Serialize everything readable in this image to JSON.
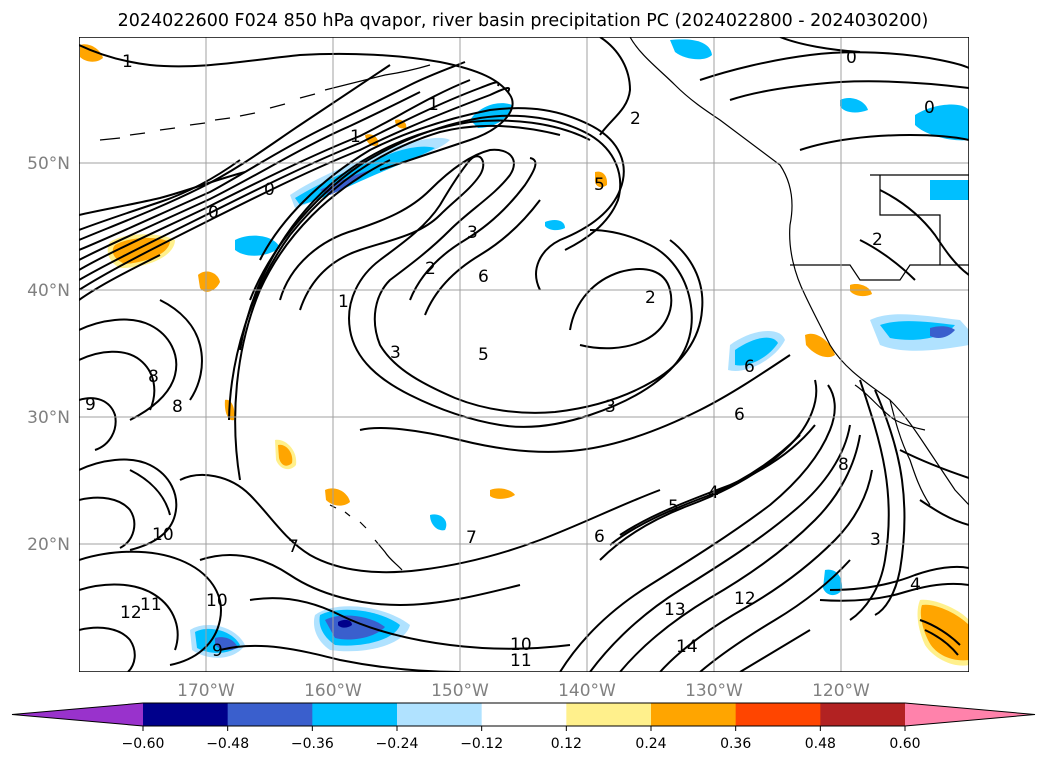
{
  "title": "2024022600 F024 850 hPa qvapor, river basin precipitation PC (2024022800 - 2024030200)",
  "axes": {
    "lat_labels": [
      "50°N",
      "40°N",
      "30°N",
      "20°N"
    ],
    "lon_labels": [
      "170°W",
      "160°W",
      "150°W",
      "140°W",
      "130°W",
      "120°W"
    ],
    "lat_range": [
      10,
      60
    ],
    "lon_range": [
      -180,
      -110
    ]
  },
  "colorbar": {
    "ticks": [
      "−0.60",
      "−0.48",
      "−0.36",
      "−0.24",
      "−0.12",
      "0.12",
      "0.24",
      "0.36",
      "0.48",
      "0.60"
    ],
    "colors": [
      "#9932cc",
      "#00008b",
      "#3a5fcd",
      "#00bfff",
      "#b0e2ff",
      "#ffffff",
      "#fff08c",
      "#ffa500",
      "#ff4500",
      "#b22222",
      "#ff82ab"
    ]
  },
  "contour_labels": [
    {
      "text": "1"
    },
    {
      "text": "1"
    },
    {
      "text": "1"
    },
    {
      "text": "1"
    },
    {
      "text": "0"
    },
    {
      "text": "0"
    },
    {
      "text": "0"
    },
    {
      "text": "0"
    },
    {
      "text": "2"
    },
    {
      "text": "2"
    },
    {
      "text": "2"
    },
    {
      "text": "2"
    },
    {
      "text": "3"
    },
    {
      "text": "3"
    },
    {
      "text": "3"
    },
    {
      "text": "3"
    },
    {
      "text": "5"
    },
    {
      "text": "5"
    },
    {
      "text": "5"
    },
    {
      "text": "6"
    },
    {
      "text": "6"
    },
    {
      "text": "6"
    },
    {
      "text": "6"
    },
    {
      "text": "7"
    },
    {
      "text": "7"
    },
    {
      "text": "8"
    },
    {
      "text": "8"
    },
    {
      "text": "8"
    },
    {
      "text": "9"
    },
    {
      "text": "9"
    },
    {
      "text": "10"
    },
    {
      "text": "10"
    },
    {
      "text": "10"
    },
    {
      "text": "11"
    },
    {
      "text": "11"
    },
    {
      "text": "12"
    },
    {
      "text": "12"
    },
    {
      "text": "13"
    },
    {
      "text": "14"
    },
    {
      "text": "4"
    },
    {
      "text": "4"
    }
  ]
}
